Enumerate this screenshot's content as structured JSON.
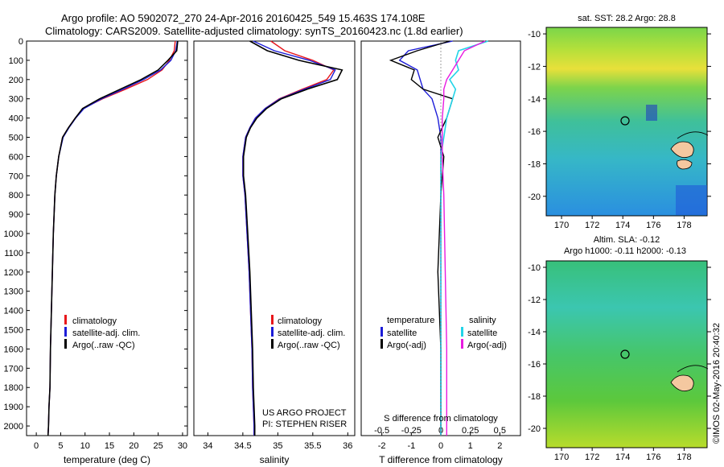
{
  "header": {
    "line1": "Argo profile: AO 5902072_270 24-Apr-2016 20160425_549 15.463S 174.108E",
    "line2": "Climatology: CARS2009. Satellite-adjusted climatology: synTS_20160423.nc (1.8d earlier)"
  },
  "colors": {
    "climatology": "#e8161b",
    "satellite": "#1c1cd8",
    "argo": "#000000",
    "sat_salinity": "#22d4e8",
    "argo_salinity": "#e81ae0"
  },
  "depth_ticks": [
    "0",
    "100",
    "200",
    "300",
    "400",
    "500",
    "600",
    "700",
    "800",
    "900",
    "1000",
    "1100",
    "1200",
    "1300",
    "1400",
    "1500",
    "1600",
    "1700",
    "1800",
    "1900",
    "2000"
  ],
  "panels": {
    "temperature": {
      "xlabel": "temperature (deg C)",
      "xticks": [
        "0",
        "5",
        "10",
        "15",
        "20",
        "25",
        "30"
      ],
      "legend": [
        "climatology",
        "satellite-adj. clim.",
        "Argo(..raw -QC)"
      ]
    },
    "salinity": {
      "xlabel": "salinity",
      "xticks": [
        "34",
        "34.5",
        "35",
        "35.5",
        "36"
      ],
      "legend": [
        "climatology",
        "satellite-adj. clim.",
        "Argo(..raw -QC)"
      ],
      "credit1": "US ARGO PROJECT",
      "credit2": "PI: STEPHEN RISER"
    },
    "difference": {
      "xlabel": "T difference from climatology",
      "top_label": "S difference from climatology",
      "s_ticks": [
        "-0.5",
        "-0.25",
        "0",
        "0.25",
        "0.5"
      ],
      "t_ticks": [
        "-2",
        "-1",
        "0",
        "1",
        "2"
      ],
      "legend_temp_title": "temperature",
      "legend_sal_title": "salinity",
      "legend_items": [
        "satellite",
        "Argo(-adj)",
        "satellite",
        "Argo(-adj)"
      ]
    },
    "sst_map": {
      "title": "sat. SST: 28.2 Argo: 28.8",
      "yticks": [
        "-10",
        "-12",
        "-14",
        "-16",
        "-18",
        "-20"
      ],
      "xticks": [
        "170",
        "172",
        "174",
        "176",
        "178"
      ]
    },
    "sla_map": {
      "title1": "Altim. SLA: -0.12",
      "title2": "Argo h1000: -0.11 h2000: -0.13",
      "yticks": [
        "-10",
        "-12",
        "-14",
        "-16",
        "-18",
        "-20"
      ],
      "xticks": [
        "170",
        "172",
        "174",
        "176",
        "178"
      ],
      "stamp": "©IMOS 02-May-2016 20:40:32"
    }
  },
  "chart_data": [
    {
      "type": "line",
      "title": "",
      "xlabel": "temperature (deg C)",
      "ylabel": "",
      "xlim": [
        -2,
        31
      ],
      "ylim": [
        2050,
        0
      ],
      "series": [
        {
          "name": "climatology",
          "x": [
            28.5,
            28.3,
            27.3,
            25.8,
            22.8,
            18.3,
            13.6,
            9.6,
            8.0,
            6.6,
            5.4,
            4.6,
            4.1,
            3.8,
            3.5,
            3.3,
            3.1,
            2.9,
            2.8,
            2.6,
            2.5,
            2.4
          ],
          "y": [
            0,
            50,
            100,
            150,
            200,
            250,
            300,
            350,
            400,
            450,
            500,
            600,
            700,
            800,
            1000,
            1200,
            1400,
            1600,
            1800,
            1900,
            2000,
            2050
          ]
        },
        {
          "name": "satellite-adj. clim.",
          "x": [
            28.9,
            28.6,
            27.6,
            25.5,
            22.0,
            17.8,
            13.4,
            9.8,
            8.1,
            6.7,
            5.5,
            4.6,
            4.1,
            3.8,
            3.5,
            3.3,
            3.1,
            2.9,
            2.8,
            2.6,
            2.5,
            2.4
          ],
          "y": [
            0,
            50,
            100,
            150,
            200,
            250,
            300,
            350,
            400,
            450,
            500,
            600,
            700,
            800,
            1000,
            1200,
            1400,
            1600,
            1800,
            1900,
            2000,
            2050
          ]
        },
        {
          "name": "Argo(..raw -QC)",
          "x": [
            29.0,
            28.8,
            27.0,
            25.0,
            21.5,
            17.2,
            13.0,
            9.5,
            8.0,
            6.6,
            5.4,
            4.6,
            4.1,
            3.8,
            3.5,
            3.3,
            3.1,
            2.9,
            2.8,
            2.6,
            2.5,
            2.4
          ],
          "y": [
            0,
            50,
            100,
            150,
            200,
            250,
            300,
            350,
            400,
            450,
            500,
            600,
            700,
            800,
            1000,
            1200,
            1400,
            1600,
            1800,
            1900,
            2000,
            2050
          ]
        }
      ]
    },
    {
      "type": "line",
      "title": "",
      "xlabel": "salinity",
      "ylabel": "",
      "xlim": [
        33.8,
        36.1
      ],
      "ylim": [
        2050,
        0
      ],
      "series": [
        {
          "name": "climatology",
          "x": [
            34.9,
            35.1,
            35.5,
            35.8,
            35.7,
            35.35,
            35.02,
            34.82,
            34.68,
            34.6,
            34.54,
            34.5,
            34.5,
            34.53,
            34.56,
            34.59,
            34.61,
            34.63,
            34.64,
            34.65,
            34.66,
            34.66
          ],
          "y": [
            0,
            50,
            100,
            150,
            200,
            250,
            300,
            350,
            400,
            450,
            500,
            600,
            700,
            800,
            1000,
            1200,
            1400,
            1600,
            1800,
            1900,
            2000,
            2050
          ]
        },
        {
          "name": "satellite-adj. clim.",
          "x": [
            34.65,
            34.95,
            35.45,
            35.82,
            35.75,
            35.38,
            35.03,
            34.82,
            34.68,
            34.6,
            34.54,
            34.5,
            34.5,
            34.53,
            34.56,
            34.59,
            34.61,
            34.63,
            34.64,
            34.65,
            34.66,
            34.66
          ],
          "y": [
            0,
            50,
            100,
            150,
            200,
            250,
            300,
            350,
            400,
            450,
            500,
            600,
            700,
            800,
            1000,
            1200,
            1400,
            1600,
            1800,
            1900,
            2000,
            2050
          ]
        },
        {
          "name": "Argo(..raw -QC)",
          "x": [
            34.6,
            34.85,
            35.3,
            35.92,
            35.85,
            35.42,
            35.05,
            34.84,
            34.7,
            34.61,
            34.55,
            34.51,
            34.51,
            34.54,
            34.57,
            34.6,
            34.62,
            34.64,
            34.65,
            34.66,
            34.67,
            34.67
          ],
          "y": [
            0,
            50,
            100,
            150,
            200,
            250,
            300,
            350,
            400,
            450,
            500,
            600,
            700,
            800,
            1000,
            1200,
            1400,
            1600,
            1800,
            1900,
            2000,
            2050
          ]
        }
      ]
    },
    {
      "type": "line",
      "title": "",
      "xlabel": "T difference from climatology",
      "ylabel": "",
      "xlim": [
        -2.7,
        2.7
      ],
      "ylim": [
        2050,
        0
      ],
      "series": [
        {
          "name": "temperature satellite",
          "x": [
            0.4,
            -1.1,
            -1.4,
            -0.8,
            -0.7,
            -0.6,
            -0.3,
            -0.1,
            0.0,
            0.0,
            0.0,
            0.0,
            0.0,
            0.0
          ],
          "y": [
            0,
            50,
            100,
            150,
            200,
            250,
            300,
            400,
            500,
            600,
            800,
            1200,
            1600,
            2050
          ]
        },
        {
          "name": "temperature Argo(-adj)",
          "x": [
            0.3,
            -0.8,
            -1.7,
            -0.9,
            -1.0,
            -0.6,
            0.4,
            0.2,
            -0.1,
            0.1,
            0.0,
            -0.1,
            0.0,
            0.0
          ],
          "y": [
            0,
            50,
            100,
            150,
            200,
            250,
            300,
            400,
            500,
            600,
            800,
            1200,
            1600,
            2050
          ]
        },
        {
          "name": "salinity satellite",
          "x": [
            1.6,
            0.6,
            0.5,
            0.6,
            0.3,
            0.5,
            0.4,
            0.2,
            0.1,
            0.0,
            0.0,
            0.0,
            0.0,
            0.0
          ],
          "y": [
            0,
            50,
            100,
            150,
            200,
            250,
            300,
            400,
            500,
            600,
            800,
            1200,
            1600,
            2050
          ]
        },
        {
          "name": "salinity Argo(-adj)",
          "x": [
            1.5,
            0.8,
            0.6,
            0.4,
            0.2,
            0.1,
            0.1,
            0.05,
            0.05,
            0.05,
            0.1,
            0.15,
            0.2,
            0.2
          ],
          "y": [
            0,
            50,
            100,
            150,
            200,
            250,
            300,
            400,
            500,
            600,
            800,
            1200,
            1600,
            2050
          ]
        }
      ]
    }
  ]
}
